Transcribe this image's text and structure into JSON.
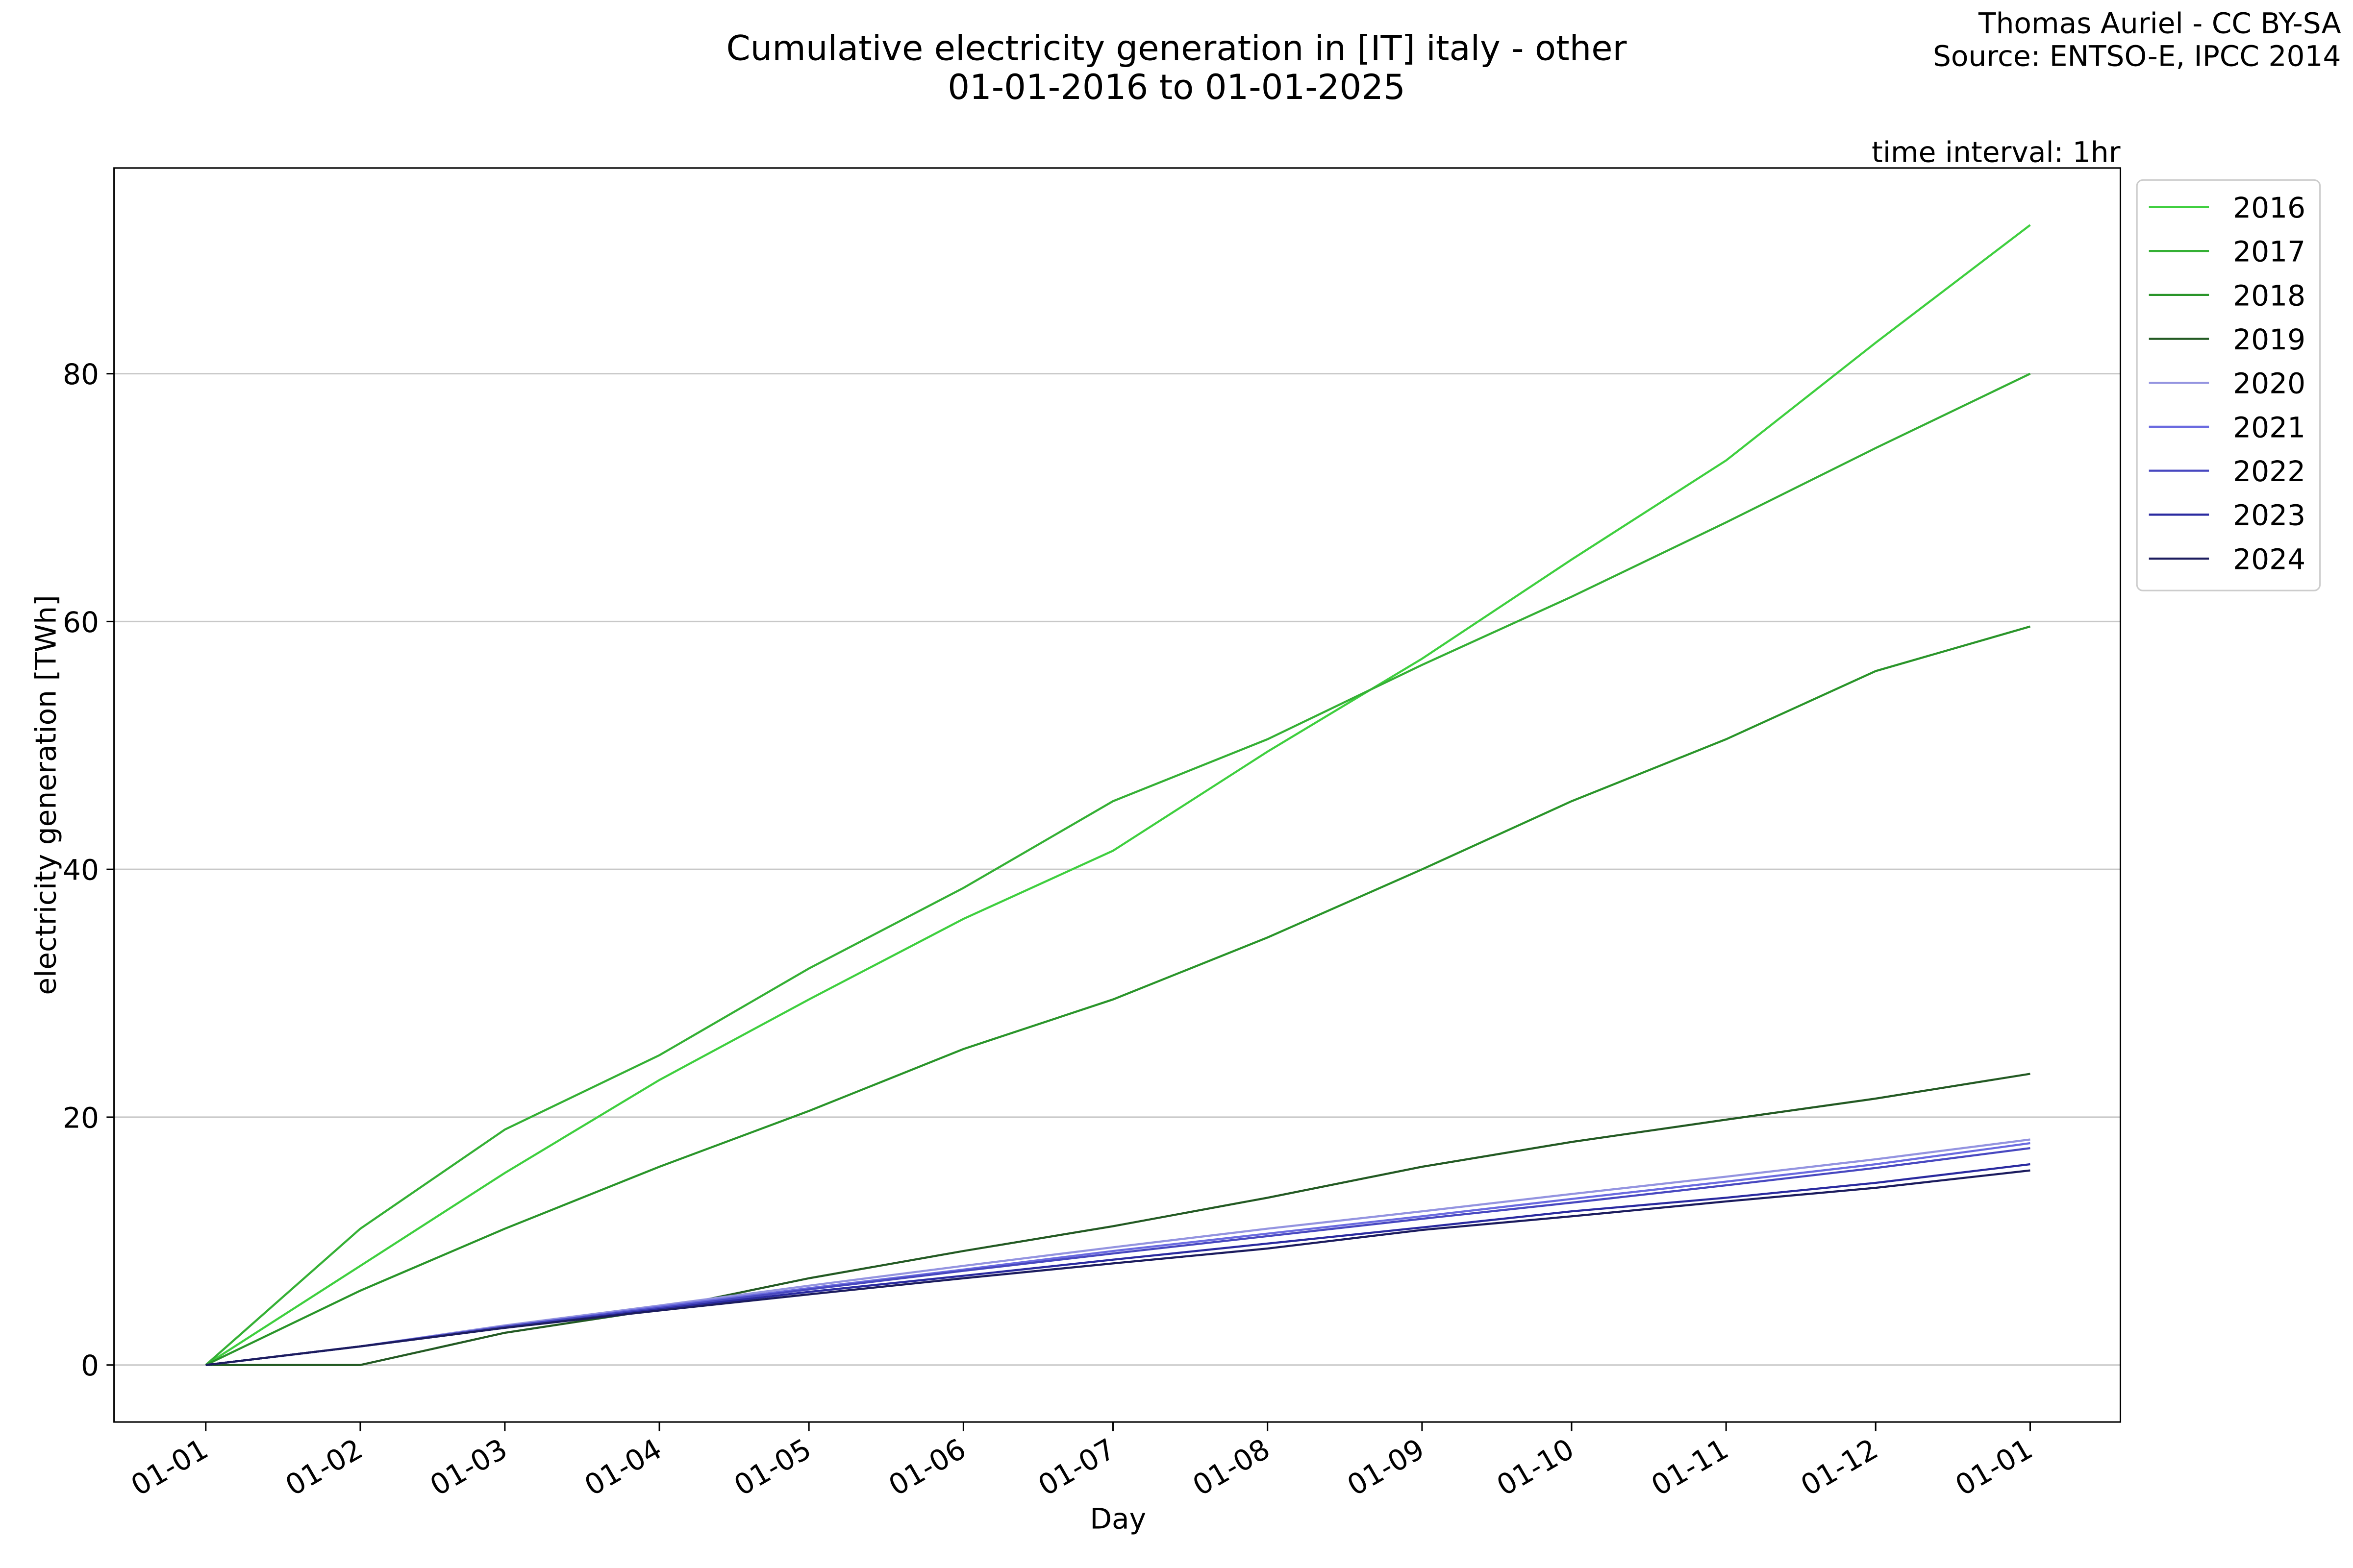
{
  "chart_data": {
    "type": "line",
    "title": "Cumulative electricity generation in [IT] italy - other",
    "subtitle": "01-01-2016 to 01-01-2025",
    "credits": [
      "Thomas Auriel - CC BY-SA",
      "Source: ENTSO-E, IPCC 2014"
    ],
    "annotation": "time interval: 1hr",
    "x_label": "Day",
    "y_label": "electricity generation [TWh]",
    "x": [
      0,
      31,
      60,
      91,
      121,
      152,
      182,
      213,
      244,
      274,
      305,
      335,
      366
    ],
    "xlim": [
      -18.4,
      384.1
    ],
    "xticks": [
      {
        "value": 0,
        "label": "01-01"
      },
      {
        "value": 31,
        "label": "01-02"
      },
      {
        "value": 60,
        "label": "01-03"
      },
      {
        "value": 91,
        "label": "01-04"
      },
      {
        "value": 121,
        "label": "01-05"
      },
      {
        "value": 152,
        "label": "01-06"
      },
      {
        "value": 182,
        "label": "01-07"
      },
      {
        "value": 213,
        "label": "01-08"
      },
      {
        "value": 244,
        "label": "01-09"
      },
      {
        "value": 274,
        "label": "01-10"
      },
      {
        "value": 305,
        "label": "01-11"
      },
      {
        "value": 335,
        "label": "01-12"
      },
      {
        "value": 366,
        "label": "01-01"
      }
    ],
    "ylim": [
      -4.6,
      96.6
    ],
    "yticks": [
      0,
      20,
      40,
      60,
      80
    ],
    "grid": true,
    "legend": "outside-right",
    "series": [
      {
        "name": "2016",
        "color": "#3fcf3f",
        "values": [
          0,
          8,
          15.5,
          23,
          29.5,
          36,
          41.5,
          49.5,
          57,
          65,
          73,
          82.5,
          92
        ]
      },
      {
        "name": "2017",
        "color": "#35b035",
        "values": [
          0,
          11,
          19,
          25,
          32,
          38.5,
          45.5,
          50.5,
          56.5,
          62,
          68,
          74,
          80
        ]
      },
      {
        "name": "2018",
        "color": "#2a952a",
        "values": [
          0,
          6,
          11,
          16,
          20.5,
          25.5,
          29.5,
          34.5,
          40,
          45.5,
          50.5,
          56,
          59.6
        ]
      },
      {
        "name": "2019",
        "color": "#235a23",
        "values": [
          0,
          0,
          2.6,
          4.5,
          7,
          9.2,
          11.2,
          13.5,
          16,
          18,
          19.8,
          21.5,
          23.5
        ]
      },
      {
        "name": "2020",
        "color": "#9494e0",
        "values": [
          0,
          1.5,
          3.2,
          4.8,
          6.4,
          8,
          9.5,
          11,
          12.4,
          13.8,
          15.2,
          16.6,
          18.2
        ]
      },
      {
        "name": "2021",
        "color": "#6b6be0",
        "values": [
          0,
          1.5,
          3.1,
          4.7,
          6.2,
          7.7,
          9.2,
          10.6,
          12,
          13.4,
          14.8,
          16.2,
          17.9
        ]
      },
      {
        "name": "2022",
        "color": "#4848c0",
        "values": [
          0,
          1.5,
          3.1,
          4.6,
          6.1,
          7.6,
          9,
          10.4,
          11.8,
          13.1,
          14.5,
          15.9,
          17.5
        ]
      },
      {
        "name": "2023",
        "color": "#2a2aa0",
        "values": [
          0,
          1.5,
          3,
          4.5,
          5.9,
          7.2,
          8.5,
          9.8,
          11.1,
          12.4,
          13.5,
          14.7,
          16.2
        ]
      },
      {
        "name": "2024",
        "color": "#1c1c5e",
        "values": [
          0,
          1.5,
          3,
          4.4,
          5.7,
          7,
          8.2,
          9.4,
          10.9,
          12,
          13.2,
          14.3,
          15.7
        ]
      }
    ]
  }
}
